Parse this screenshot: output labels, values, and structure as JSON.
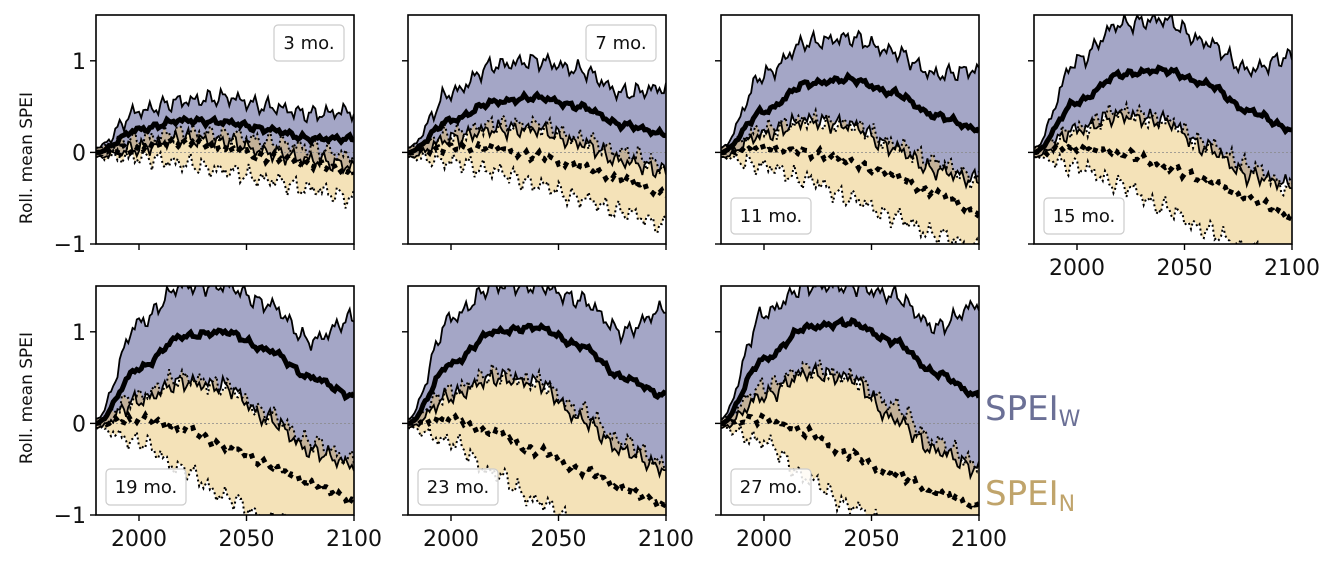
{
  "chart_data": {
    "type": "area",
    "ylabel": "Roll. mean SPEI",
    "xlim": [
      1980,
      2100
    ],
    "ylim": [
      -1,
      1.5
    ],
    "xticks": [
      2000,
      2050,
      2100
    ],
    "xtick_labels": [
      "2000",
      "2050",
      "2100"
    ],
    "yticks": [
      -1,
      0,
      1
    ],
    "ytick_labels": [
      "−1",
      "0",
      "1"
    ],
    "reference_line": 0,
    "legend": {
      "wet": {
        "main": "SPEI",
        "sub": "W",
        "color": "#6b7096"
      },
      "dry": {
        "main": "SPEI",
        "sub": "N",
        "color": "#c0a46b"
      }
    },
    "colors": {
      "wet_fill": "#a4a6c6",
      "dry_fill": "#f4e2b8",
      "overlap_fill": "#c9b38f"
    },
    "panels": [
      {
        "label": "3 mo.",
        "label_pos": "top-right",
        "x": [
          1980,
          2000,
          2020,
          2040,
          2060,
          2080,
          2100
        ],
        "wet_mean": [
          0,
          0.25,
          0.35,
          0.33,
          0.25,
          0.15,
          0.15
        ],
        "wet_upper": [
          0.05,
          0.45,
          0.56,
          0.6,
          0.5,
          0.42,
          0.45
        ],
        "wet_lower": [
          -0.05,
          0.05,
          0.15,
          0.12,
          0.0,
          -0.08,
          -0.15
        ],
        "dry_mean": [
          0,
          0.05,
          0.12,
          0.05,
          -0.05,
          -0.12,
          -0.22
        ],
        "dry_upper": [
          0.05,
          0.15,
          0.22,
          0.2,
          0.12,
          0.05,
          -0.05
        ],
        "dry_lower": [
          -0.05,
          -0.05,
          -0.12,
          -0.2,
          -0.3,
          -0.4,
          -0.5
        ]
      },
      {
        "label": "7 mo.",
        "label_pos": "top-right",
        "x": [
          1980,
          2000,
          2020,
          2040,
          2060,
          2080,
          2100
        ],
        "wet_mean": [
          0,
          0.35,
          0.55,
          0.6,
          0.5,
          0.3,
          0.2
        ],
        "wet_upper": [
          0.05,
          0.65,
          0.95,
          1.0,
          0.9,
          0.65,
          0.7
        ],
        "wet_lower": [
          -0.05,
          0.15,
          0.25,
          0.25,
          0.1,
          -0.1,
          -0.2
        ],
        "dry_mean": [
          0,
          0.05,
          0.05,
          -0.05,
          -0.15,
          -0.3,
          -0.45
        ],
        "dry_upper": [
          0.05,
          0.2,
          0.3,
          0.3,
          0.15,
          0.0,
          -0.15
        ],
        "dry_lower": [
          -0.05,
          -0.1,
          -0.2,
          -0.35,
          -0.5,
          -0.65,
          -0.8
        ]
      },
      {
        "label": "11 mo.",
        "label_pos": "bottom-left",
        "x": [
          1980,
          2000,
          2020,
          2040,
          2060,
          2080,
          2100
        ],
        "wet_mean": [
          0,
          0.45,
          0.75,
          0.8,
          0.65,
          0.4,
          0.25
        ],
        "wet_upper": [
          0.05,
          0.85,
          1.2,
          1.25,
          1.1,
          0.85,
          0.9
        ],
        "wet_lower": [
          -0.05,
          0.2,
          0.35,
          0.3,
          0.05,
          -0.2,
          -0.3
        ],
        "dry_mean": [
          0,
          0.05,
          0.0,
          -0.1,
          -0.25,
          -0.45,
          -0.65
        ],
        "dry_upper": [
          0.05,
          0.25,
          0.35,
          0.3,
          0.1,
          -0.1,
          -0.3
        ],
        "dry_lower": [
          -0.05,
          -0.15,
          -0.3,
          -0.5,
          -0.7,
          -0.9,
          -1.05
        ]
      },
      {
        "label": "15 mo.",
        "label_pos": "bottom-left",
        "x": [
          1980,
          2000,
          2020,
          2040,
          2060,
          2080,
          2100
        ],
        "wet_mean": [
          0,
          0.55,
          0.85,
          0.9,
          0.75,
          0.45,
          0.25
        ],
        "wet_upper": [
          0.05,
          1.0,
          1.4,
          1.45,
          1.2,
          0.9,
          1.05
        ],
        "wet_lower": [
          -0.05,
          0.25,
          0.4,
          0.35,
          0.05,
          -0.25,
          -0.35
        ],
        "dry_mean": [
          0,
          0.05,
          0.0,
          -0.15,
          -0.3,
          -0.5,
          -0.7
        ],
        "dry_upper": [
          0.05,
          0.25,
          0.45,
          0.35,
          0.1,
          -0.15,
          -0.4
        ],
        "dry_lower": [
          -0.05,
          -0.15,
          -0.35,
          -0.6,
          -0.85,
          -1.05,
          -1.15
        ]
      },
      {
        "label": "19 mo.",
        "label_pos": "bottom-left",
        "x": [
          1980,
          2000,
          2020,
          2040,
          2060,
          2080,
          2100
        ],
        "wet_mean": [
          0,
          0.6,
          0.95,
          1.0,
          0.8,
          0.5,
          0.3
        ],
        "wet_upper": [
          0.05,
          1.1,
          1.5,
          1.5,
          1.3,
          0.9,
          1.15
        ],
        "wet_lower": [
          -0.05,
          0.25,
          0.45,
          0.4,
          0.05,
          -0.3,
          -0.45
        ],
        "dry_mean": [
          0,
          0.05,
          -0.05,
          -0.25,
          -0.45,
          -0.65,
          -0.85
        ],
        "dry_upper": [
          0.05,
          0.3,
          0.5,
          0.4,
          0.1,
          -0.2,
          -0.4
        ],
        "dry_lower": [
          -0.05,
          -0.2,
          -0.5,
          -0.8,
          -1.05,
          -1.15,
          -1.2
        ]
      },
      {
        "label": "23 mo.",
        "label_pos": "bottom-left",
        "x": [
          1980,
          2000,
          2020,
          2040,
          2060,
          2080,
          2100
        ],
        "wet_mean": [
          0,
          0.65,
          1.0,
          1.05,
          0.85,
          0.5,
          0.3
        ],
        "wet_upper": [
          0.05,
          1.15,
          1.5,
          1.5,
          1.35,
          1.0,
          1.25
        ],
        "wet_lower": [
          -0.05,
          0.3,
          0.5,
          0.45,
          0.05,
          -0.3,
          -0.5
        ],
        "dry_mean": [
          0,
          0.05,
          -0.1,
          -0.3,
          -0.5,
          -0.7,
          -0.9
        ],
        "dry_upper": [
          0.05,
          0.35,
          0.55,
          0.45,
          0.15,
          -0.2,
          -0.45
        ],
        "dry_lower": [
          -0.05,
          -0.2,
          -0.55,
          -0.85,
          -1.1,
          -1.2,
          -1.2
        ]
      },
      {
        "label": "27 mo.",
        "label_pos": "bottom-left",
        "x": [
          1980,
          2000,
          2020,
          2040,
          2060,
          2080,
          2100
        ],
        "wet_mean": [
          0,
          0.7,
          1.05,
          1.1,
          0.9,
          0.55,
          0.3
        ],
        "wet_upper": [
          0.05,
          1.2,
          1.5,
          1.5,
          1.4,
          1.05,
          1.3
        ],
        "wet_lower": [
          -0.05,
          0.3,
          0.55,
          0.5,
          0.05,
          -0.3,
          -0.5
        ],
        "dry_mean": [
          0,
          0.05,
          -0.1,
          -0.35,
          -0.55,
          -0.75,
          -0.9
        ],
        "dry_upper": [
          0.05,
          0.4,
          0.6,
          0.5,
          0.2,
          -0.2,
          -0.45
        ],
        "dry_lower": [
          -0.05,
          -0.2,
          -0.6,
          -0.9,
          -1.15,
          -1.2,
          -1.2
        ]
      }
    ]
  }
}
